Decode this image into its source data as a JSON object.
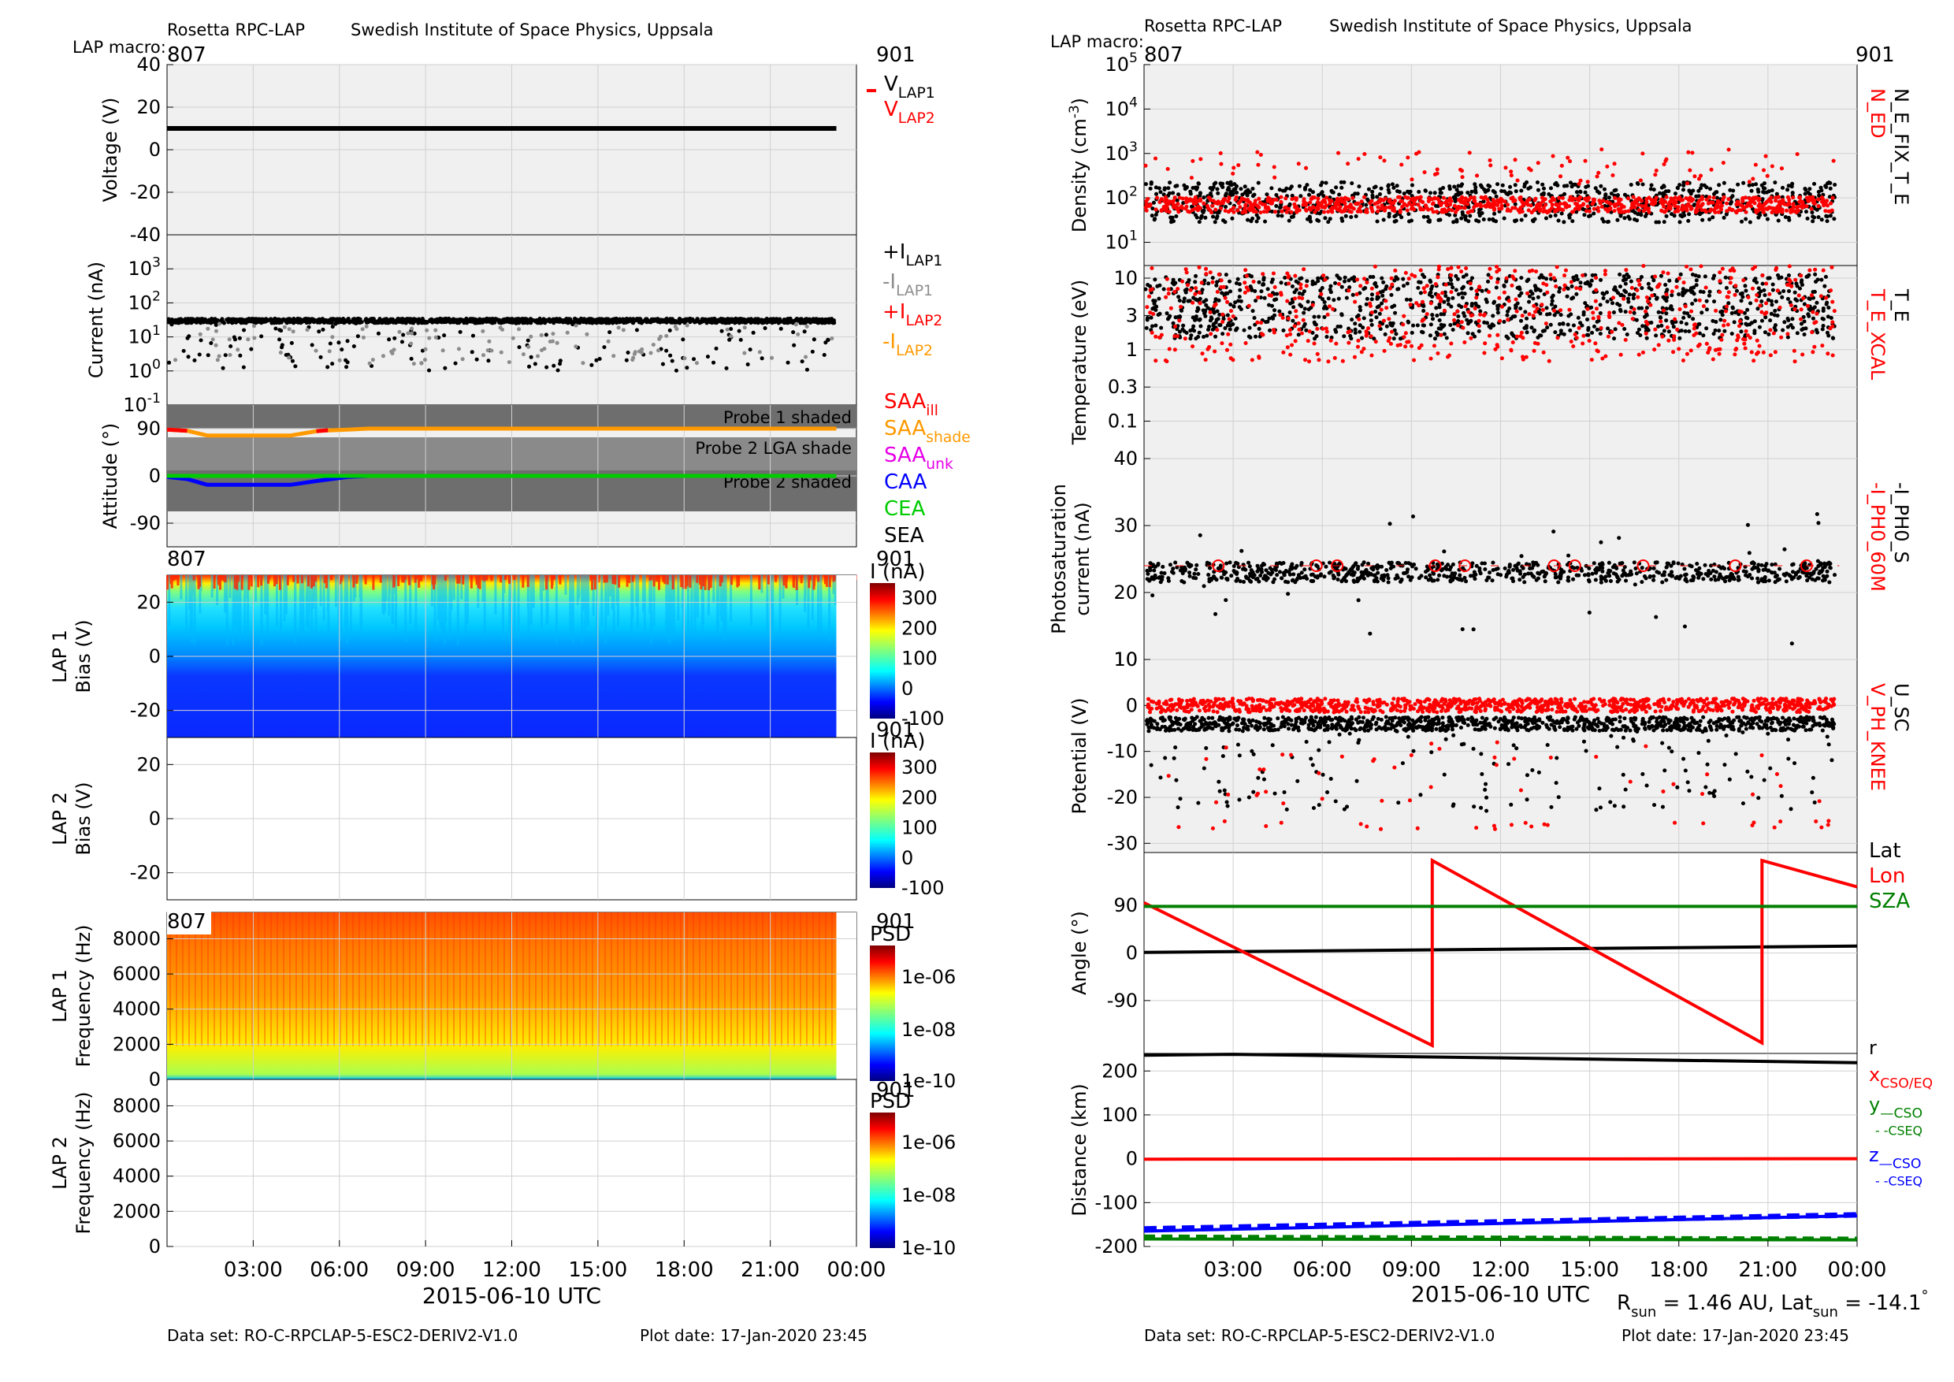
{
  "header": {
    "left": {
      "instrument": "Rosetta RPC-LAP",
      "institute": "Swedish Institute of Space Physics, Uppsala",
      "macro_label": "LAP macro:"
    },
    "right": {
      "instrument": "Rosetta RPC-LAP",
      "institute": "Swedish Institute of Space Physics, Uppsala",
      "macro_label": "LAP macro:"
    }
  },
  "footer": {
    "left": {
      "dataset": "Data set: RO-C-RPCLAP-5-ESC2-DERIV2-V1.0",
      "plotdate": "Plot date: 17-Jan-2020 23:45"
    },
    "right": {
      "dataset": "Data set: RO-C-RPCLAP-5-ESC2-DERIV2-V1.0",
      "plotdate": "Plot date: 17-Jan-2020 23:45"
    }
  },
  "colors": {
    "black": "#000000",
    "red": "#ff0000",
    "gray": "#8c8c8c",
    "orange": "#ff9900",
    "magenta": "#e600e6",
    "blue": "#0000ff",
    "green": "#00cc00",
    "darkgreen": "#008000",
    "panel_bg": "#f0f0f0",
    "grid": "#d0d0d0",
    "shade": "#6e6e6e"
  },
  "chart_data": [
    {
      "type": "line",
      "panel": "voltage",
      "macro_start": "807",
      "macro_end": "901",
      "ylabel": "Voltage (V)",
      "ylim": [
        -40,
        40
      ],
      "yticks": [
        "40",
        "20",
        "0",
        "-20",
        "-40"
      ],
      "xlim_hours": [
        0,
        24
      ],
      "series": [
        {
          "name": "V_LAP1",
          "x": [
            0,
            23.3
          ],
          "values": [
            10,
            10
          ]
        }
      ],
      "legend": [
        {
          "text": "V",
          "sub": "LAP1",
          "color": "#000000"
        },
        {
          "text": "V",
          "sub": "LAP2",
          "color": "#ff0000"
        }
      ]
    },
    {
      "type": "scatter",
      "panel": "current",
      "ylabel": "Current (nA)",
      "yscale": "log",
      "ylim": [
        0.1,
        10000
      ],
      "yticks": [
        {
          "base": "10",
          "exp": "3"
        },
        {
          "base": "10",
          "exp": "2"
        },
        {
          "base": "10",
          "exp": "1"
        },
        {
          "base": "10",
          "exp": "0"
        },
        {
          "base": "10",
          "exp": "-1"
        }
      ],
      "series": [
        {
          "name": "+I_LAP1",
          "typical": 30
        }
      ],
      "legend": [
        {
          "text": "+I",
          "sub": "LAP1",
          "color": "#000000"
        },
        {
          "text": "-I",
          "sub": "LAP1",
          "color": "#8c8c8c"
        },
        {
          "text": "+I",
          "sub": "LAP2",
          "color": "#ff0000"
        },
        {
          "text": "-I",
          "sub": "LAP2",
          "color": "#ff9900"
        }
      ]
    },
    {
      "type": "line",
      "panel": "attitude",
      "ylabel": "Attitude (°)",
      "ylim": [
        -135,
        135
      ],
      "yticks": [
        "90",
        "0",
        "-90"
      ],
      "shade_labels": [
        "Probe 1 shaded",
        "Probe 2 LGA shade",
        "Probe 2 shaded"
      ],
      "series": [
        {
          "name": "SAA",
          "x": [
            0,
            0.7,
            1.4,
            4.3,
            5.3,
            6.3,
            7,
            23.3
          ],
          "values": [
            88,
            86,
            77,
            77,
            86,
            88,
            90,
            90
          ]
        },
        {
          "name": "CAA",
          "x": [
            0,
            0.7,
            1.4,
            4.3,
            5.3,
            6.3,
            7,
            23.3
          ],
          "values": [
            -2,
            -6,
            -17,
            -17,
            -9,
            -2,
            0,
            0
          ]
        },
        {
          "name": "CEA",
          "x": [
            0,
            23.3
          ],
          "values": [
            0,
            0
          ]
        }
      ],
      "legend": [
        {
          "text": "SAA",
          "sub": "ill",
          "color": "#ff0000"
        },
        {
          "text": "SAA",
          "sub": "shade",
          "color": "#ff9900"
        },
        {
          "text": "SAA",
          "sub": "unk",
          "color": "#e600e6"
        },
        {
          "text": "CAA",
          "sub": "",
          "color": "#0000ff"
        },
        {
          "text": "CEA",
          "sub": "",
          "color": "#00cc00"
        },
        {
          "text": "SEA",
          "sub": "",
          "color": "#000000"
        }
      ]
    },
    {
      "type": "heatmap",
      "panel": "lap1_sweep",
      "ylabel": [
        "LAP 1",
        "Bias (V)"
      ],
      "ylim": [
        -30,
        30
      ],
      "yticks": [
        "20",
        "0",
        "-20"
      ],
      "macro_start": "807",
      "macro_end": "901",
      "colorbar": {
        "label": "I (nA)",
        "ticks": [
          "300",
          "200",
          "100",
          "0",
          "-100"
        ],
        "range": [
          -100,
          350
        ]
      }
    },
    {
      "type": "heatmap",
      "panel": "lap2_sweep",
      "ylabel": [
        "LAP 2",
        "Bias (V)"
      ],
      "ylim": [
        -30,
        30
      ],
      "yticks": [
        "20",
        "0",
        "-20"
      ],
      "macro_end": "901",
      "colorbar": {
        "label": "I (nA)",
        "ticks": [
          "300",
          "200",
          "100",
          "0",
          "-100"
        ],
        "range": [
          -100,
          350
        ]
      }
    },
    {
      "type": "heatmap",
      "panel": "lap1_psd",
      "ylabel": [
        "LAP 1",
        "Frequency (Hz)"
      ],
      "ylim": [
        0,
        9500
      ],
      "yticks": [
        "8000",
        "6000",
        "4000",
        "2000",
        "0"
      ],
      "macro_start": "807",
      "macro_end": "901",
      "colorbar": {
        "label": "PSD",
        "ticks": [
          "1e-06",
          "1e-08",
          "1e-10"
        ]
      }
    },
    {
      "type": "heatmap",
      "panel": "lap2_psd",
      "ylabel": [
        "LAP 2",
        "Frequency (Hz)"
      ],
      "ylim": [
        0,
        9500
      ],
      "yticks": [
        "8000",
        "6000",
        "4000",
        "2000",
        "0"
      ],
      "macro_end": "901",
      "colorbar": {
        "label": "PSD",
        "ticks": [
          "1e-06",
          "1e-08",
          "1e-10"
        ]
      },
      "xticks": [
        "03:00",
        "06:00",
        "09:00",
        "12:00",
        "15:00",
        "18:00",
        "21:00",
        "00:00"
      ],
      "xlabel": "2015-06-10 UTC"
    },
    {
      "type": "scatter",
      "panel": "density",
      "macro_start": "807",
      "macro_end": "901",
      "ylabel": "Density (cm-3)",
      "yscale": "log",
      "ylim": [
        3,
        100000
      ],
      "yticks": [
        {
          "base": "10",
          "exp": "5"
        },
        {
          "base": "10",
          "exp": "4"
        },
        {
          "base": "10",
          "exp": "3"
        },
        {
          "base": "10",
          "exp": "2"
        },
        {
          "base": "10",
          "exp": "1"
        }
      ],
      "series": [
        {
          "name": "N_E_FIX_T_E",
          "typical": 80
        },
        {
          "name": "N_ED",
          "typical": 70
        }
      ],
      "side_labels": [
        {
          "text": "N_ED",
          "color": "#ff0000"
        },
        {
          "text": "N_E_FIX_T_E",
          "color": "#000000"
        }
      ]
    },
    {
      "type": "scatter",
      "panel": "temperature",
      "ylabel": "Temperature (eV)",
      "yscale": "log",
      "ylim": [
        0.03,
        15
      ],
      "yticks": [
        "10",
        "3",
        "1",
        "0.3",
        "0.1"
      ],
      "series": [
        {
          "name": "T_E",
          "typical": 4
        },
        {
          "name": "T_E_XCAL",
          "typical": 4
        }
      ],
      "side_labels": [
        {
          "text": "T_E_XCAL",
          "color": "#ff0000"
        },
        {
          "text": "T_E",
          "color": "#000000"
        }
      ]
    },
    {
      "type": "scatter",
      "panel": "photosaturation",
      "ylabel": [
        "Photosaturation",
        "current (nA)"
      ],
      "ylim": [
        10,
        40
      ],
      "yticks": [
        "40",
        "30",
        "20",
        "10"
      ],
      "series": [
        {
          "name": "-I_PH0_S",
          "typical": 23
        },
        {
          "name": "-I_PH0_60M",
          "typical": 24
        }
      ],
      "side_labels": [
        {
          "text": "-I_PH0_60M",
          "color": "#ff0000"
        },
        {
          "text": "-I_PH0_S",
          "color": "#000000"
        }
      ]
    },
    {
      "type": "scatter",
      "panel": "potential",
      "ylabel": "Potential (V)",
      "ylim": [
        -32,
        10
      ],
      "yticks": [
        "10",
        "0",
        "-10",
        "-20",
        "-30"
      ],
      "series": [
        {
          "name": "U_SC",
          "typical": -4
        },
        {
          "name": "V_PH_KNEE",
          "typical": 0
        }
      ],
      "side_labels": [
        {
          "text": "V_PH_KNEE",
          "color": "#ff0000"
        },
        {
          "text": "U_SC",
          "color": "#000000"
        }
      ]
    },
    {
      "type": "line",
      "panel": "angle",
      "ylabel": "Angle (°)",
      "ylim": [
        -190,
        190
      ],
      "yticks": [
        "90",
        "0",
        "-90"
      ],
      "series": [
        {
          "name": "Lat",
          "x": [
            0,
            24
          ],
          "values": [
            1,
            13
          ]
        },
        {
          "name": "Lon",
          "x": [
            0,
            9.7,
            9.7,
            20.8,
            20.8,
            24
          ],
          "values": [
            95,
            -175,
            175,
            -170,
            175,
            125
          ]
        },
        {
          "name": "SZA",
          "x": [
            0,
            24
          ],
          "values": [
            88,
            88
          ]
        }
      ],
      "legend": [
        {
          "text": "Lat",
          "sub": "",
          "color": "#000000"
        },
        {
          "text": "Lon",
          "sub": "",
          "color": "#ff0000"
        },
        {
          "text": "SZA",
          "sub": "",
          "color": "#008000"
        }
      ]
    },
    {
      "type": "line",
      "panel": "distance",
      "ylabel": "Distance (km)",
      "ylim": [
        -200,
        240
      ],
      "yticks": [
        "200",
        "100",
        "0",
        "-100",
        "-200"
      ],
      "xticks": [
        "03:00",
        "06:00",
        "09:00",
        "12:00",
        "15:00",
        "18:00",
        "21:00",
        "00:00"
      ],
      "xlabel": "2015-06-10 UTC",
      "series": [
        {
          "name": "r",
          "x": [
            0,
            3,
            24
          ],
          "values": [
            236,
            238,
            219
          ]
        },
        {
          "name": "x_CSO/EQ",
          "x": [
            0,
            24
          ],
          "values": [
            -1,
            0
          ]
        },
        {
          "name": "y_CSO",
          "x": [
            0,
            24
          ],
          "values": [
            -183,
            -185
          ]
        },
        {
          "name": "y_CSEQ",
          "x": [
            0,
            24
          ],
          "values": [
            -178,
            -183
          ]
        },
        {
          "name": "z_CSO",
          "x": [
            0,
            24
          ],
          "values": [
            -165,
            -130
          ]
        },
        {
          "name": "z_CSEQ",
          "x": [
            0,
            24
          ],
          "values": [
            -160,
            -128
          ]
        }
      ],
      "legend": [
        {
          "text": "r",
          "sub": "",
          "color": "#000000"
        },
        {
          "text": "x",
          "sub": "CSO/EQ",
          "color": "#ff0000"
        },
        {
          "text": "y",
          "sub": "—CSO",
          "color": "#008000"
        },
        {
          "text": "",
          "sub": "- -CSEQ",
          "color": "#008000"
        },
        {
          "text": "z",
          "sub": "—CSO",
          "color": "#0000ff"
        },
        {
          "text": "",
          "sub": "- -CSEQ",
          "color": "#0000ff"
        }
      ],
      "note": {
        "r_sun": "= 1.46 AU, Lat",
        "r_label": "R",
        "r_sub": "sun",
        "lat_sub": "sun",
        "lat_val": " = -14.1"
      }
    }
  ]
}
